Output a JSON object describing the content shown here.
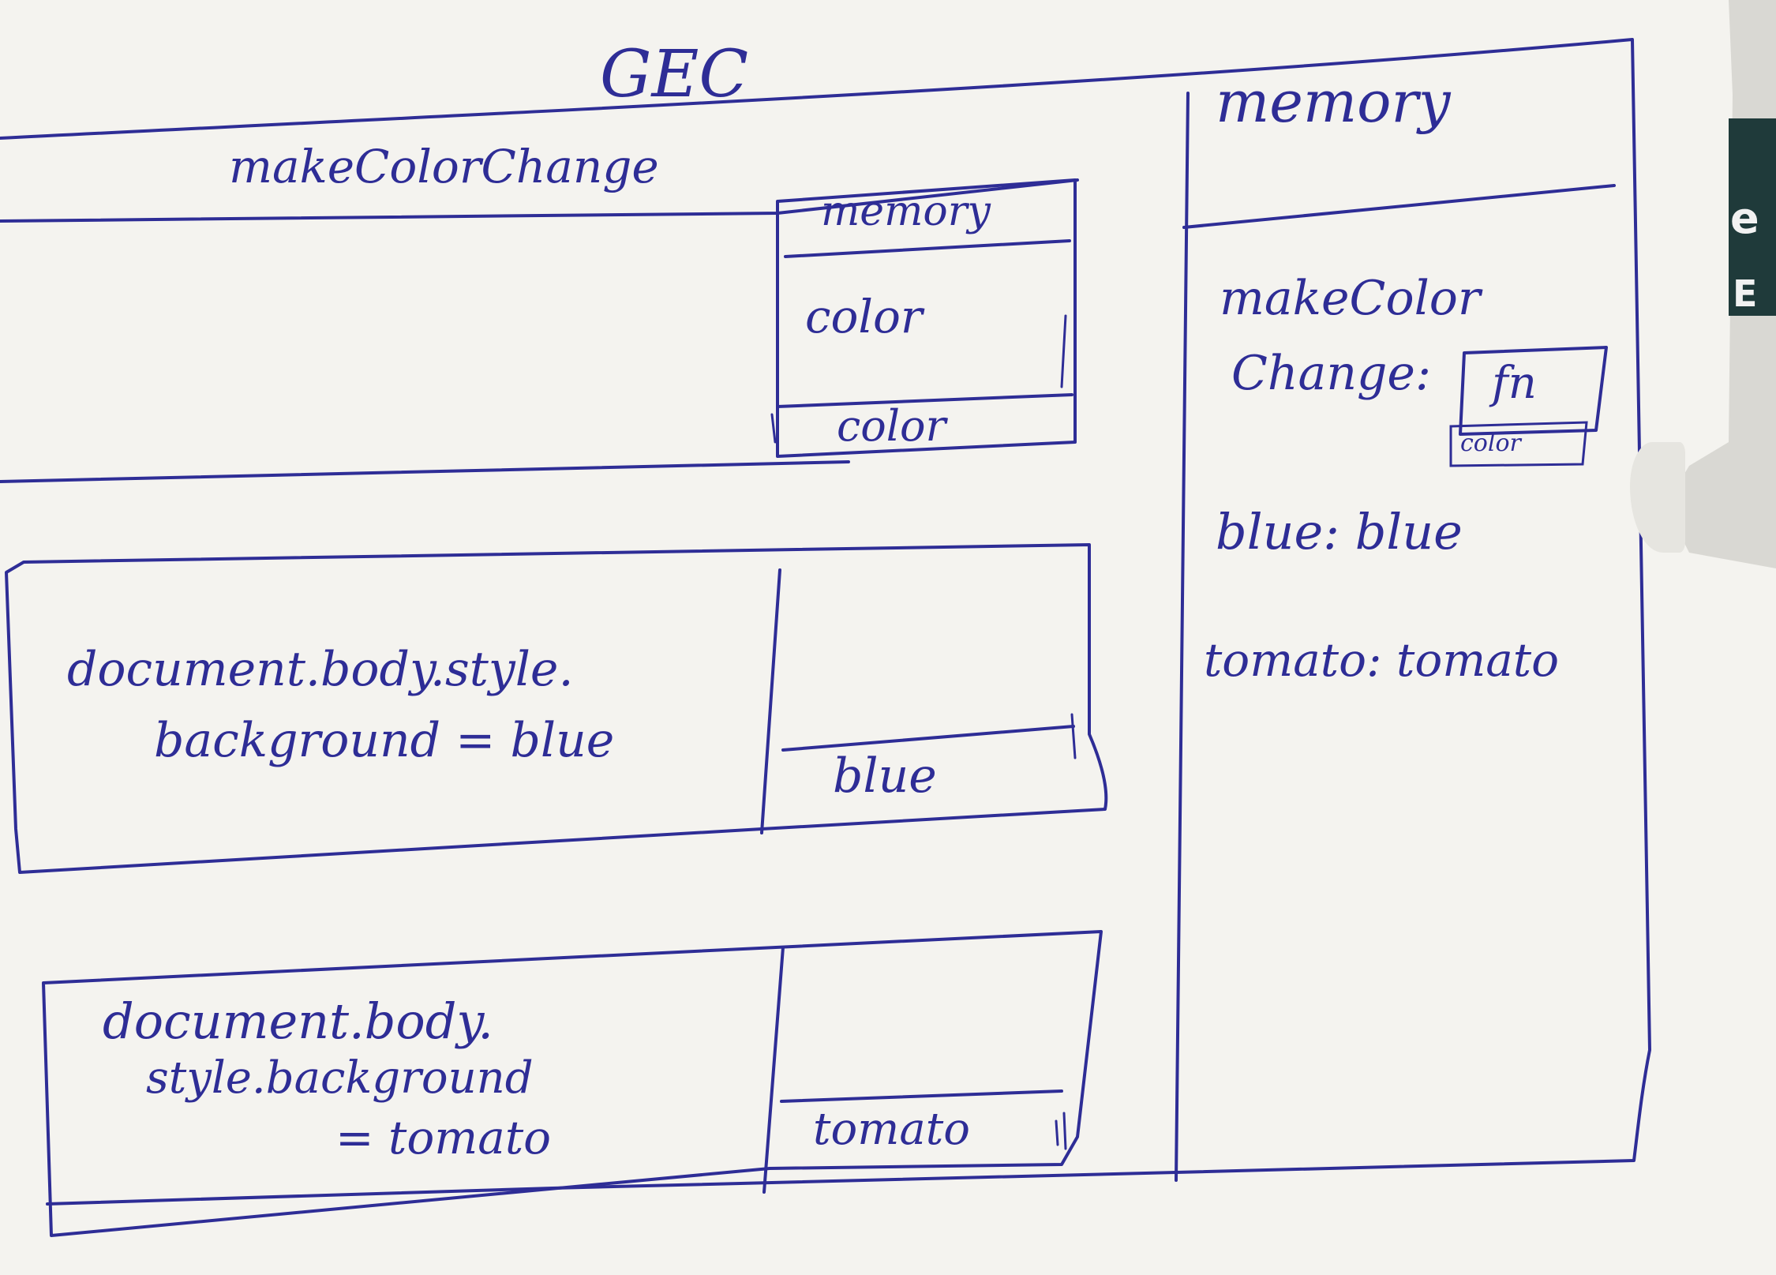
{
  "diagram": {
    "gec_title": "GEC",
    "make_color_change_label": "makeColorChange",
    "inner_memory_label": "memory",
    "inner_param": "color",
    "inner_arg": "color",
    "call1_code_line1": "document.body.style.",
    "call1_code_line2": "background = blue",
    "call1_arg": "blue",
    "call2_code_line1": "document.body.",
    "call2_code_line2": "style.background",
    "call2_code_line3": "= tomato",
    "call2_arg": "tomato",
    "global_memory_label": "memory",
    "global_mem_line1": "makeColor",
    "global_mem_line2": "Change:",
    "global_mem_fn": "fn",
    "global_mem_fn_param": "color",
    "global_mem_blue": "blue: blue",
    "global_mem_tomato": "tomato: tomato"
  },
  "background_edge": {
    "letter1": "e",
    "letter2": "E"
  },
  "colors": {
    "ink": "#2e2d96",
    "paper": "#f4f3ef"
  }
}
